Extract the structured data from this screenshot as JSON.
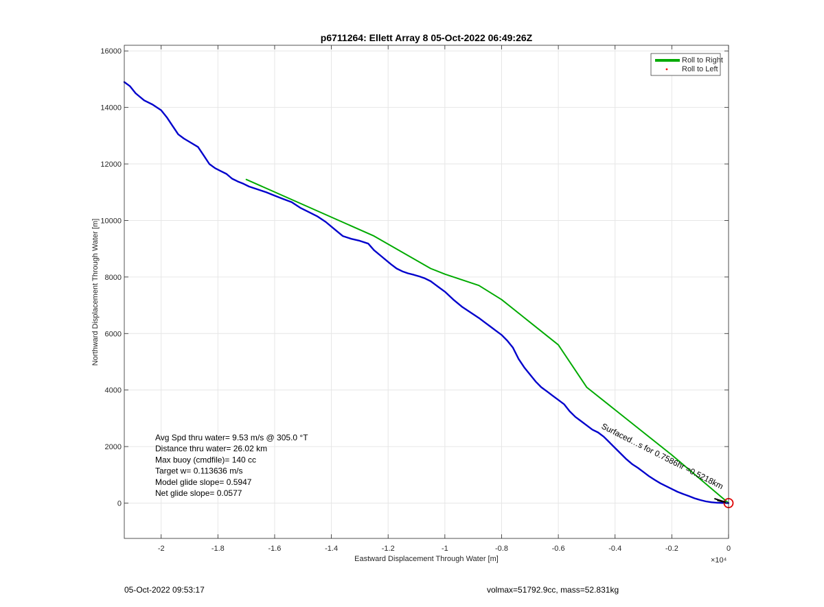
{
  "chart_data": {
    "type": "line",
    "title": "p6711264: Ellett Array 8 05-Oct-2022 06:49:26Z",
    "xlabel": "Eastward Displacement Through Water [m]",
    "ylabel": "Northward Displacement Through Water [m]",
    "x_exponent_label": "×10⁴",
    "xlim": [
      -2.13,
      0
    ],
    "ylim": [
      -1250,
      16200
    ],
    "xticks": [
      -2,
      -1.8,
      -1.6,
      -1.4,
      -1.2,
      -1,
      -0.8,
      -0.6,
      -0.4,
      -0.2,
      0
    ],
    "xtick_labels": [
      "-2",
      "-1.8",
      "-1.6",
      "-1.4",
      "-1.2",
      "-1",
      "-0.8",
      "-0.6",
      "-0.4",
      "-0.2",
      "0"
    ],
    "yticks": [
      0,
      2000,
      4000,
      6000,
      8000,
      10000,
      12000,
      14000,
      16000
    ],
    "ytick_labels": [
      "0",
      "2000",
      "4000",
      "6000",
      "8000",
      "10000",
      "12000",
      "14000",
      "16000"
    ],
    "grid": true,
    "legend_placement": "top-right",
    "legend": [
      {
        "label": "Roll to Right",
        "color": "#00aa00",
        "style": "line"
      },
      {
        "label": "Roll to Left",
        "color": "#ff0000",
        "style": "point"
      }
    ],
    "series": [
      {
        "name": "Roll to Right",
        "color": "#00aa00",
        "x": [
          -1.7,
          -1.25,
          -1.05,
          -1.0,
          -0.88,
          -0.8,
          -0.7,
          -0.6,
          -0.5,
          -0.4,
          -0.3,
          -0.2,
          -0.1,
          0
        ],
        "y": [
          11450,
          9450,
          8300,
          8100,
          7700,
          7200,
          6400,
          5600,
          4100,
          3300,
          2500,
          1700,
          850,
          0
        ]
      },
      {
        "color": "#0000cc",
        "x": [
          -2.13,
          -2.11,
          -2.09,
          -2.06,
          -2.03,
          -2.0,
          -1.98,
          -1.96,
          -1.94,
          -1.92,
          -1.9,
          -1.87,
          -1.85,
          -1.83,
          -1.81,
          -1.79,
          -1.77,
          -1.75,
          -1.73,
          -1.71,
          -1.69,
          -1.66,
          -1.63,
          -1.6,
          -1.57,
          -1.54,
          -1.51,
          -1.48,
          -1.45,
          -1.42,
          -1.39,
          -1.36,
          -1.33,
          -1.3,
          -1.27,
          -1.25,
          -1.22,
          -1.19,
          -1.17,
          -1.15,
          -1.13,
          -1.11,
          -1.09,
          -1.07,
          -1.05,
          -1.03,
          -1.0,
          -0.97,
          -0.94,
          -0.91,
          -0.88,
          -0.86,
          -0.84,
          -0.82,
          -0.8,
          -0.78,
          -0.76,
          -0.74,
          -0.72,
          -0.7,
          -0.68,
          -0.66,
          -0.64,
          -0.62,
          -0.6,
          -0.58,
          -0.56,
          -0.54,
          -0.52,
          -0.5,
          -0.48,
          -0.46,
          -0.44,
          -0.42,
          -0.4,
          -0.38,
          -0.36,
          -0.34,
          -0.32,
          -0.3,
          -0.28,
          -0.26,
          -0.24,
          -0.22,
          -0.2,
          -0.18,
          -0.16,
          -0.14,
          -0.12,
          -0.1,
          -0.08,
          -0.06,
          -0.04,
          -0.02,
          0
        ],
        "y": [
          14900,
          14750,
          14500,
          14250,
          14100,
          13900,
          13650,
          13350,
          13050,
          12900,
          12780,
          12600,
          12300,
          12000,
          11850,
          11750,
          11650,
          11480,
          11380,
          11300,
          11200,
          11100,
          11000,
          10880,
          10760,
          10650,
          10450,
          10300,
          10150,
          9950,
          9700,
          9450,
          9350,
          9280,
          9180,
          8950,
          8700,
          8450,
          8300,
          8200,
          8130,
          8080,
          8020,
          7950,
          7850,
          7700,
          7480,
          7200,
          6950,
          6750,
          6550,
          6400,
          6250,
          6100,
          5950,
          5750,
          5500,
          5100,
          4800,
          4550,
          4300,
          4100,
          3950,
          3800,
          3650,
          3500,
          3250,
          3050,
          2900,
          2750,
          2600,
          2500,
          2350,
          2150,
          1950,
          1750,
          1550,
          1380,
          1250,
          1100,
          950,
          820,
          700,
          600,
          500,
          400,
          320,
          250,
          170,
          110,
          60,
          30,
          10,
          5,
          0
        ]
      }
    ],
    "annotations": {
      "rotated_label": "Surfaced…s for 0.7586hr =0.5218km",
      "stats": [
        "Avg Spd thru water=  9.53 m/s @ 305.0 °T",
        "Distance thru water= 26.02 km",
        "Max buoy (cmdfile)= 140 cc",
        "Target w= 0.113636 m/s",
        "Model glide slope= 0.5947",
        "Net glide slope= 0.0577"
      ]
    },
    "end_marker_color": "#dd0000"
  },
  "footer": {
    "timestamp": "05-Oct-2022 09:53:17",
    "summary": "volmax=51792.9cc, mass=52.831kg"
  }
}
